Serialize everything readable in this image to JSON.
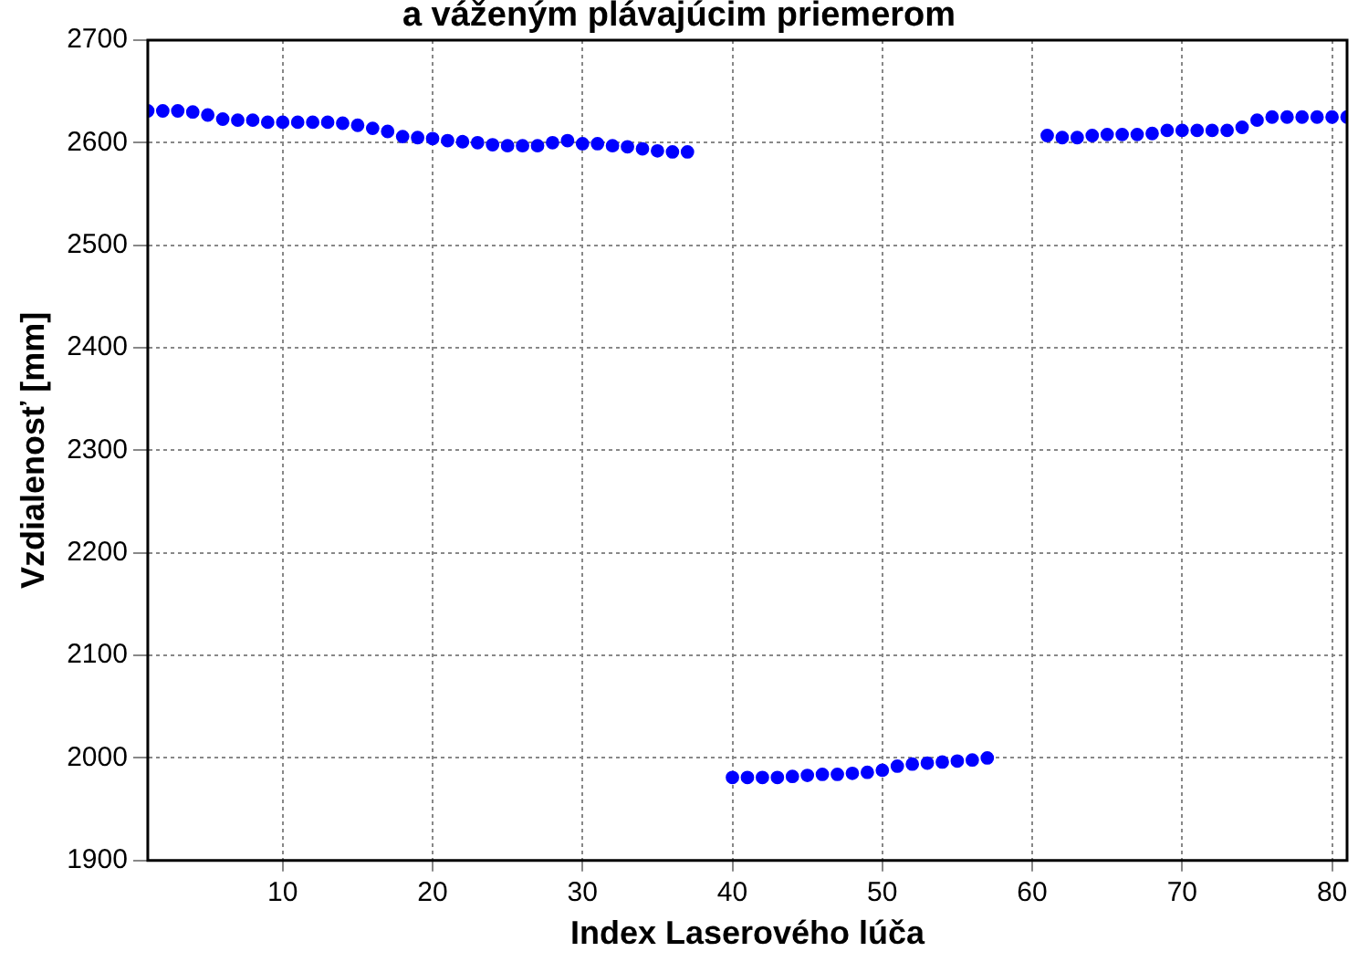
{
  "chart_data": {
    "type": "scatter",
    "title": "a váženým plávajúcim priemerom",
    "xlabel": "Index Laserového lúča",
    "ylabel": "Vzdialenosť [mm]",
    "xlim": [
      1,
      81
    ],
    "xticks": [
      10,
      20,
      30,
      40,
      50,
      60,
      70,
      80
    ],
    "ylim": [
      1900,
      2700
    ],
    "yticks": [
      1900,
      2000,
      2100,
      2200,
      2300,
      2400,
      2500,
      2600,
      2700
    ],
    "grid": true,
    "marker": "circle",
    "legend": false,
    "series": [
      {
        "color": "#0000ff",
        "x": [
          1,
          2,
          3,
          4,
          5,
          6,
          7,
          8,
          9,
          10,
          11,
          12,
          13,
          14,
          15,
          16,
          17,
          18,
          19,
          20,
          21,
          22,
          23,
          24,
          25,
          26,
          27,
          28,
          29,
          30,
          31,
          32,
          33,
          34,
          35,
          36,
          37,
          40,
          41,
          42,
          43,
          44,
          45,
          46,
          47,
          48,
          49,
          50,
          51,
          52,
          53,
          54,
          55,
          56,
          57,
          61,
          62,
          63,
          64,
          65,
          66,
          67,
          68,
          69,
          70,
          71,
          72,
          73,
          74,
          75,
          76,
          77,
          78,
          79,
          80,
          81
        ],
        "values": [
          2631,
          2631,
          2631,
          2630,
          2627,
          2623,
          2622,
          2622,
          2620,
          2620,
          2620,
          2620,
          2620,
          2619,
          2617,
          2614,
          2611,
          2606,
          2605,
          2604,
          2602,
          2601,
          2600,
          2598,
          2597,
          2597,
          2597,
          2600,
          2602,
          2599,
          2599,
          2597,
          2596,
          2594,
          2592,
          2591,
          2591,
          1981,
          1981,
          1981,
          1981,
          1982,
          1983,
          1984,
          1984,
          1985,
          1986,
          1988,
          1992,
          1994,
          1995,
          1996,
          1997,
          1998,
          2000,
          2607,
          2605,
          2605,
          2607,
          2608,
          2608,
          2608,
          2609,
          2612,
          2612,
          2612,
          2612,
          2612,
          2615,
          2622,
          2625,
          2625,
          2625,
          2625,
          2625,
          2625
        ]
      }
    ]
  }
}
